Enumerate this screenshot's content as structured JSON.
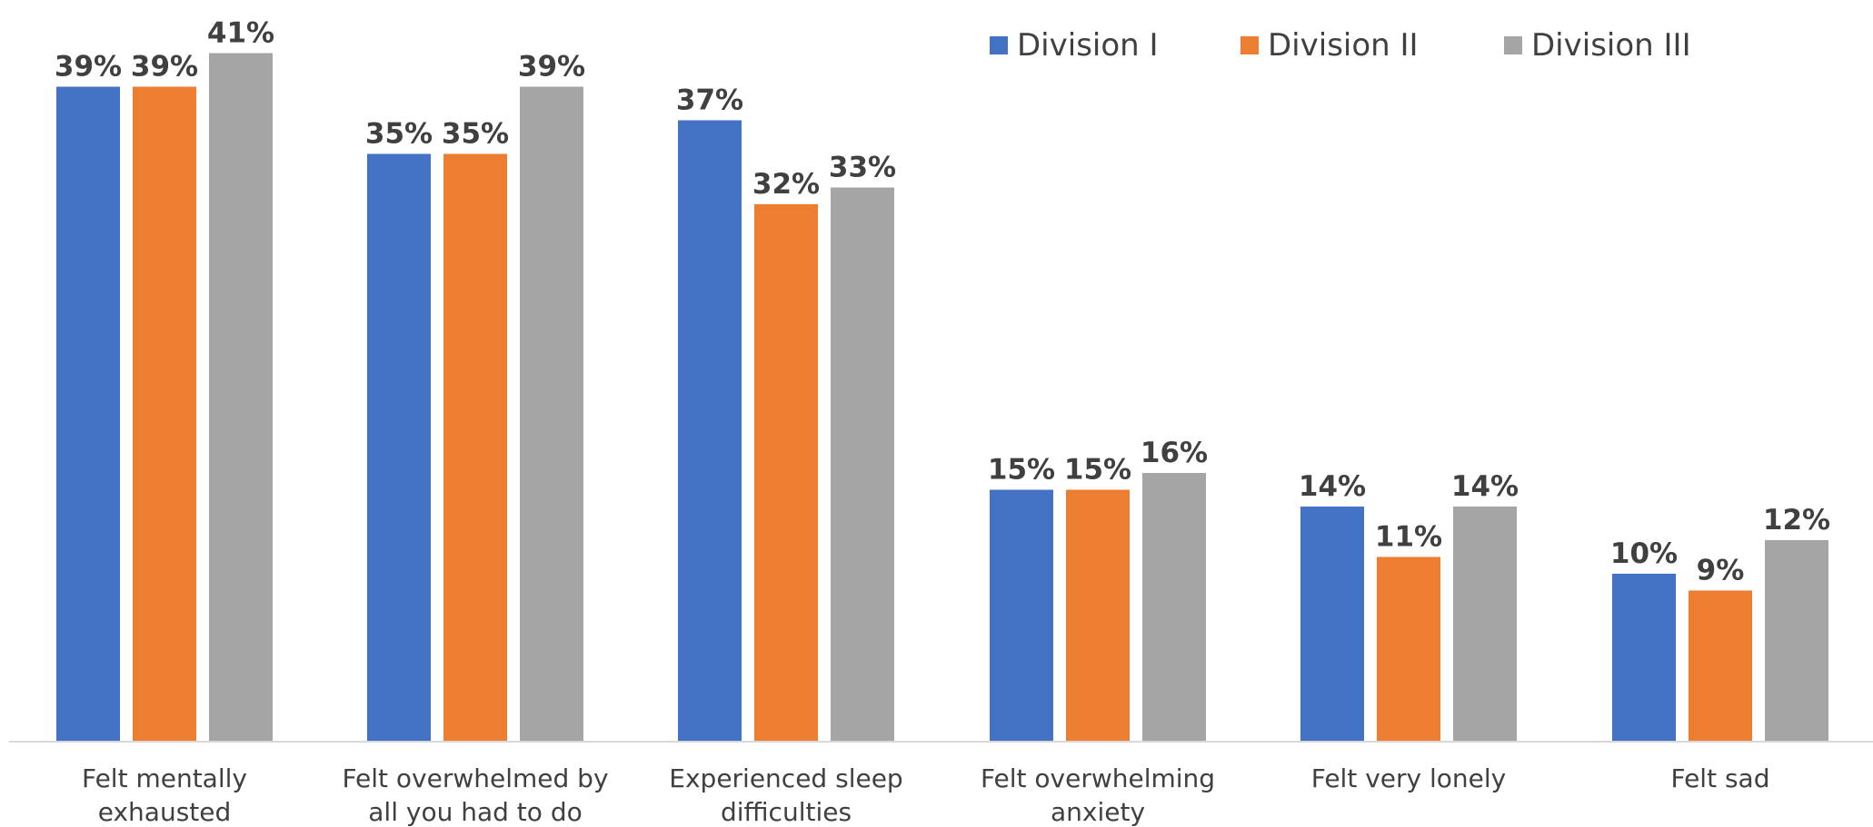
{
  "chart_data": {
    "type": "bar",
    "title": "",
    "xlabel": "",
    "ylabel": "",
    "ylim": [
      0,
      41
    ],
    "grid": false,
    "legend_position": "top-right",
    "categories": [
      [
        "Felt mentally",
        "exhausted"
      ],
      [
        "Felt overwhelmed by",
        "all you had to do"
      ],
      [
        "Experienced sleep",
        "difficulties"
      ],
      [
        "Felt overwhelming",
        "anxiety"
      ],
      [
        "Felt very lonely"
      ],
      [
        "Felt sad"
      ]
    ],
    "series": [
      {
        "name": "Division I",
        "color": "#4472C4",
        "values": [
          39,
          35,
          37,
          15,
          14,
          10
        ],
        "labels": [
          "39%",
          "35%",
          "37%",
          "15%",
          "14%",
          "10%"
        ]
      },
      {
        "name": "Division II",
        "color": "#ED7D31",
        "values": [
          39,
          35,
          32,
          15,
          11,
          9
        ],
        "labels": [
          "39%",
          "35%",
          "32%",
          "15%",
          "11%",
          "9%"
        ]
      },
      {
        "name": "Division III",
        "color": "#A5A5A5",
        "values": [
          41,
          39,
          33,
          16,
          14,
          12
        ],
        "labels": [
          "41%",
          "39%",
          "33%",
          "16%",
          "14%",
          "12%"
        ]
      }
    ],
    "axis_color": "#D9D9D9",
    "text_color": "#404040"
  }
}
